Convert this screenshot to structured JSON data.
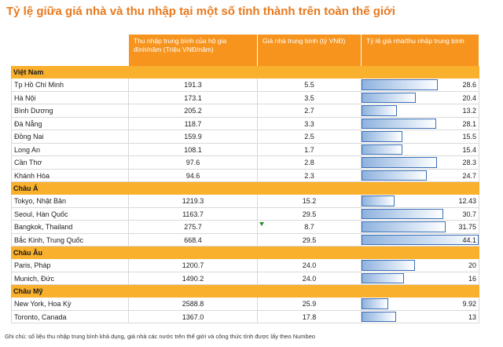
{
  "title": "Tỷ lệ giữa giá nhà và thu nhập tại một số tỉnh thành trên toàn thế giới",
  "headers": {
    "col1": "",
    "col2": "Thu nhập trung bình của hộ gia đình/năm (Triệu VNĐ/năm)",
    "col3": "Giá nhà trung bình (tỷ VNĐ)",
    "col4": "Tỷ lệ giá nhà/thu nhập trung bình"
  },
  "colors": {
    "header": "#f7941d",
    "group": "#f9b02d",
    "title": "#e8791e",
    "bar_border": "#3b6fb6"
  },
  "groups": [
    {
      "name": "Việt Nam",
      "rows": [
        {
          "city": "Tp Hồ Chí Minh",
          "income": "191.3",
          "price": "5.5",
          "ratio": "28.6",
          "ratio_num": 28.6
        },
        {
          "city": "Hà Nội",
          "income": "173.1",
          "price": "3.5",
          "ratio": "20.4",
          "ratio_num": 20.4
        },
        {
          "city": "Bình Dương",
          "income": "205.2",
          "price": "2.7",
          "ratio": "13.2",
          "ratio_num": 13.2
        },
        {
          "city": "Đà Nẵng",
          "income": "118.7",
          "price": "3.3",
          "ratio": "28.1",
          "ratio_num": 28.1
        },
        {
          "city": "Đồng Nai",
          "income": "159.9",
          "price": "2.5",
          "ratio": "15.5",
          "ratio_num": 15.5
        },
        {
          "city": "Long An",
          "income": "108.1",
          "price": "1.7",
          "ratio": "15.4",
          "ratio_num": 15.4
        },
        {
          "city": "Cần Thơ",
          "income": "97.6",
          "price": "2.8",
          "ratio": "28.3",
          "ratio_num": 28.3
        },
        {
          "city": "Khánh Hòa",
          "income": "94.6",
          "price": "2.3",
          "ratio": "24.7",
          "ratio_num": 24.7
        }
      ]
    },
    {
      "name": "Châu Á",
      "rows": [
        {
          "city": "Tokyo, Nhật Bản",
          "income": "1219.3",
          "price": "15.2",
          "ratio": "12.43",
          "ratio_num": 12.43
        },
        {
          "city": "Seoul, Hàn Quốc",
          "income": "1163.7",
          "price": "29.5",
          "ratio": "30.7",
          "ratio_num": 30.7
        },
        {
          "city": "Bangkok, Thailand",
          "income": "275.7",
          "price": "8.7",
          "ratio": "31.75",
          "ratio_num": 31.75
        },
        {
          "city": "Bắc Kinh, Trung Quốc",
          "income": "668.4",
          "price": "29.5",
          "ratio": "44.1",
          "ratio_num": 44.1
        }
      ]
    },
    {
      "name": "Châu Âu",
      "rows": [
        {
          "city": "Paris, Pháp",
          "income": "1200.7",
          "price": "24.0",
          "ratio": "20",
          "ratio_num": 20
        },
        {
          "city": "Munich, Đức",
          "income": "1490.2",
          "price": "24.0",
          "ratio": "16",
          "ratio_num": 16
        }
      ]
    },
    {
      "name": "Châu Mỹ",
      "rows": [
        {
          "city": "New York, Hoa Kỳ",
          "income": "2588.8",
          "price": "25.9",
          "ratio": "9.92",
          "ratio_num": 9.92
        },
        {
          "city": "Toronto, Canada",
          "income": "1367.0",
          "price": "17.8",
          "ratio": "13",
          "ratio_num": 13
        }
      ]
    }
  ],
  "note": "Ghi chú: số liệu thu nhập trung bình khả dụng, giá nhà các nước trên thế giới và công thức tính được lấy theo Numbeo"
}
